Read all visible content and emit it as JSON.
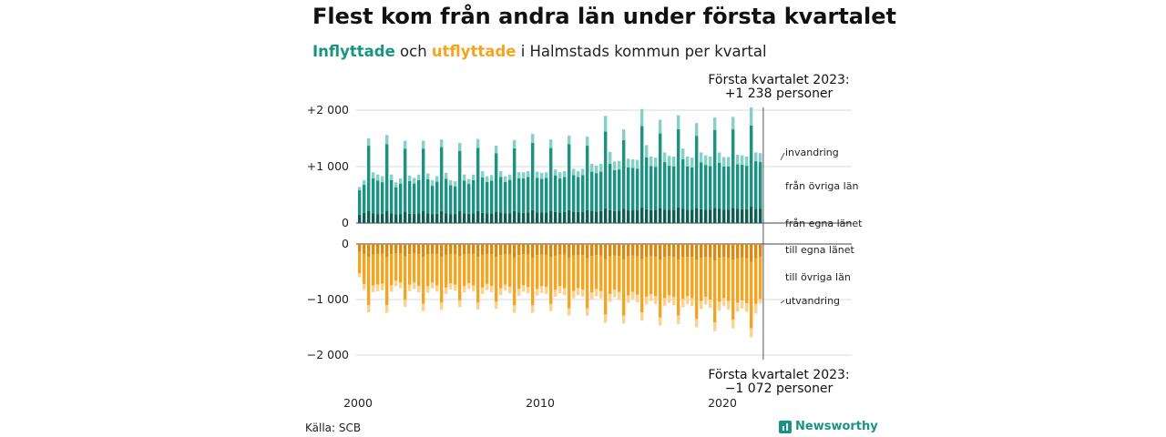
{
  "title": "Flest kom från andra län under första kvartalet",
  "subtitle": {
    "in_word": "Inflyttade",
    "and_word": " och ",
    "out_word": "utflyttade",
    "rest": " i Halmstads kommun per kvartal"
  },
  "source": "Källa: SCB",
  "brand": "Newsworthy",
  "colors": {
    "in_own_county": "#0d5e55",
    "in_other_counties": "#1a9482",
    "in_immigration": "#84d1c8",
    "out_own_county": "#d98a10",
    "out_other_counties": "#f5a41f",
    "out_emigration": "#fbd28f"
  },
  "chart_data": {
    "type": "bar",
    "stacked": true,
    "x_ticks": [
      "2000",
      "2010",
      "2020"
    ],
    "y_ticks_top": [
      "+2 000",
      "+1 000",
      "0"
    ],
    "y_ticks_bottom": [
      "0",
      "−1 000",
      "−2 000"
    ],
    "ylim_top": [
      0,
      2000
    ],
    "ylim_bottom": [
      -2000,
      0
    ],
    "grid": true,
    "annotation_top": [
      "Första kvartalet 2023:",
      "+1 238 personer"
    ],
    "annotation_bottom": [
      "Första kvartalet 2023:",
      "−1 072 personer"
    ],
    "series_labels_in": [
      "invandring",
      "från övriga län",
      "från egna länet"
    ],
    "series_labels_out": [
      "till egna länet",
      "till övriga län",
      "utvandring"
    ],
    "quarters_start": "2000 Q1",
    "quarters_end": "2023 Q1",
    "in_total": [
      640,
      760,
      1500,
      900,
      860,
      830,
      1560,
      860,
      720,
      790,
      1460,
      840,
      800,
      860,
      1460,
      880,
      760,
      830,
      1480,
      890,
      760,
      740,
      1420,
      860,
      780,
      860,
      1490,
      920,
      830,
      850,
      1370,
      920,
      830,
      860,
      1470,
      900,
      900,
      920,
      1580,
      910,
      890,
      900,
      1480,
      950,
      900,
      920,
      1550,
      960,
      920,
      960,
      1530,
      1050,
      1020,
      1050,
      1900,
      1260,
      1090,
      1100,
      1660,
      1140,
      1130,
      1120,
      2020,
      1380,
      1180,
      1160,
      1830,
      1250,
      1190,
      1180,
      1910,
      1320,
      1180,
      1160,
      1770,
      1250,
      1200,
      1180,
      1870,
      1250,
      1170,
      1170,
      1880,
      1210,
      1200,
      1180,
      2050,
      1250,
      1238
    ],
    "in_own": [
      150,
      180,
      210,
      170,
      160,
      165,
      220,
      170,
      155,
      160,
      205,
      165,
      160,
      170,
      210,
      175,
      160,
      165,
      215,
      175,
      160,
      160,
      210,
      175,
      165,
      170,
      215,
      180,
      170,
      170,
      205,
      185,
      170,
      175,
      215,
      185,
      180,
      185,
      230,
      190,
      185,
      190,
      220,
      195,
      190,
      195,
      230,
      200,
      195,
      200,
      230,
      210,
      205,
      210,
      260,
      230,
      215,
      220,
      250,
      225,
      225,
      225,
      280,
      245,
      230,
      235,
      270,
      240,
      235,
      235,
      275,
      250,
      235,
      235,
      265,
      245,
      240,
      240,
      270,
      250,
      240,
      240,
      270,
      250,
      245,
      245,
      290,
      255,
      250
    ],
    "in_other": [
      430,
      500,
      1160,
      620,
      590,
      560,
      1180,
      590,
      480,
      540,
      1110,
      580,
      540,
      590,
      1110,
      600,
      500,
      570,
      1130,
      610,
      510,
      490,
      1070,
      580,
      530,
      590,
      1120,
      630,
      560,
      580,
      1030,
      630,
      560,
      590,
      1110,
      610,
      610,
      630,
      1190,
      610,
      600,
      610,
      1110,
      650,
      600,
      620,
      1170,
      650,
      620,
      650,
      1140,
      700,
      680,
      700,
      1360,
      820,
      720,
      730,
      1220,
      760,
      750,
      740,
      1440,
      920,
      780,
      760,
      1320,
      840,
      780,
      770,
      1390,
      880,
      770,
      750,
      1280,
      830,
      790,
      770,
      1380,
      820,
      760,
      760,
      1390,
      790,
      790,
      770,
      1440,
      840,
      830
    ],
    "out_total": [
      -600,
      -820,
      -1230,
      -870,
      -850,
      -830,
      -1240,
      -860,
      -760,
      -800,
      -1130,
      -850,
      -810,
      -870,
      -1210,
      -880,
      -800,
      -860,
      -1190,
      -900,
      -820,
      -840,
      -1140,
      -870,
      -810,
      -860,
      -1180,
      -900,
      -830,
      -870,
      -1170,
      -920,
      -840,
      -890,
      -1240,
      -930,
      -860,
      -890,
      -1240,
      -930,
      -880,
      -900,
      -1210,
      -950,
      -890,
      -920,
      -1290,
      -980,
      -920,
      -950,
      -1290,
      -1000,
      -940,
      -980,
      -1420,
      -1040,
      -960,
      -1000,
      -1430,
      -1060,
      -990,
      -1050,
      -1380,
      -1090,
      -1030,
      -1080,
      -1470,
      -1120,
      -1060,
      -1100,
      -1440,
      -1140,
      -1080,
      -1120,
      -1500,
      -1170,
      -1090,
      -1150,
      -1570,
      -1200,
      -1120,
      -1180,
      -1520,
      -1220,
      -1160,
      -1220,
      -1680,
      -1250,
      -1072
    ],
    "out_own": [
      -140,
      -180,
      -240,
      -190,
      -180,
      -175,
      -240,
      -185,
      -165,
      -175,
      -225,
      -185,
      -175,
      -185,
      -235,
      -190,
      -175,
      -185,
      -235,
      -195,
      -180,
      -180,
      -225,
      -190,
      -175,
      -185,
      -235,
      -195,
      -180,
      -185,
      -230,
      -200,
      -180,
      -190,
      -245,
      -200,
      -185,
      -190,
      -245,
      -200,
      -190,
      -195,
      -240,
      -205,
      -190,
      -195,
      -255,
      -210,
      -195,
      -200,
      -255,
      -215,
      -200,
      -210,
      -275,
      -220,
      -205,
      -215,
      -280,
      -225,
      -210,
      -225,
      -270,
      -230,
      -220,
      -230,
      -285,
      -235,
      -225,
      -235,
      -280,
      -240,
      -230,
      -235,
      -290,
      -245,
      -230,
      -240,
      -300,
      -250,
      -235,
      -245,
      -290,
      -255,
      -245,
      -255,
      -320,
      -260,
      -230
    ],
    "out_other": [
      -390,
      -540,
      -860,
      -560,
      -550,
      -540,
      -860,
      -560,
      -490,
      -520,
      -780,
      -550,
      -520,
      -570,
      -840,
      -570,
      -520,
      -560,
      -820,
      -590,
      -530,
      -550,
      -790,
      -570,
      -530,
      -560,
      -820,
      -590,
      -540,
      -570,
      -810,
      -600,
      -550,
      -580,
      -860,
      -610,
      -560,
      -580,
      -860,
      -610,
      -570,
      -580,
      -840,
      -620,
      -570,
      -600,
      -900,
      -640,
      -600,
      -620,
      -900,
      -660,
      -610,
      -640,
      -1000,
      -680,
      -620,
      -650,
      -1010,
      -700,
      -650,
      -690,
      -960,
      -720,
      -680,
      -710,
      -1040,
      -740,
      -700,
      -720,
      -1010,
      -750,
      -710,
      -740,
      -1060,
      -780,
      -720,
      -760,
      -1110,
      -790,
      -740,
      -780,
      -1070,
      -800,
      -770,
      -810,
      -1200,
      -820,
      -760
    ]
  }
}
